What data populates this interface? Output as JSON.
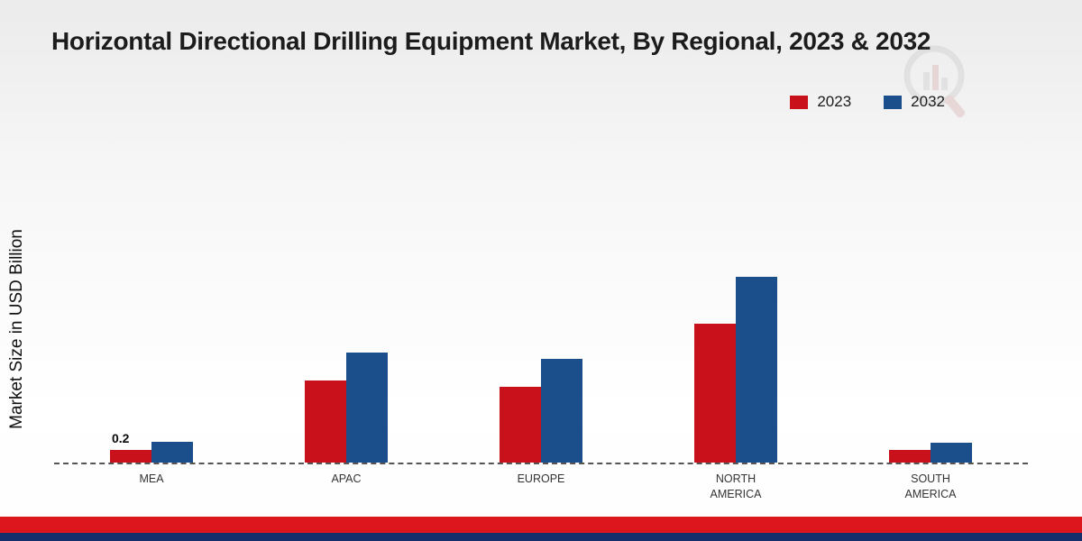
{
  "title": "Horizontal Directional Drilling Equipment Market, By Regional, 2023 & 2032",
  "ylabel": "Market Size in USD Billion",
  "chart_data": {
    "type": "bar",
    "categories": [
      "MEA",
      "APAC",
      "EUROPE",
      "NORTH AMERICA",
      "SOUTH AMERICA"
    ],
    "series": [
      {
        "name": "2023",
        "color": "#c8111b",
        "values": [
          0.2,
          1.3,
          1.2,
          2.2,
          0.2
        ]
      },
      {
        "name": "2032",
        "color": "#1a4f8c",
        "values": [
          0.33,
          1.75,
          1.65,
          2.95,
          0.32
        ]
      }
    ],
    "annotations": [
      {
        "category_index": 0,
        "series_index": 0,
        "text": "0.2"
      }
    ],
    "ylim": [
      0,
      3.5
    ],
    "grid": false,
    "legend_position": "top-right",
    "baseline_style": "dashed"
  },
  "colors": {
    "footer_red_band": "#dd161d",
    "footer_blue_band": "#142f6b",
    "axis_line": "#555555",
    "title_text": "#1c1c1c"
  },
  "watermark": {
    "name": "brand-logo-watermark"
  }
}
